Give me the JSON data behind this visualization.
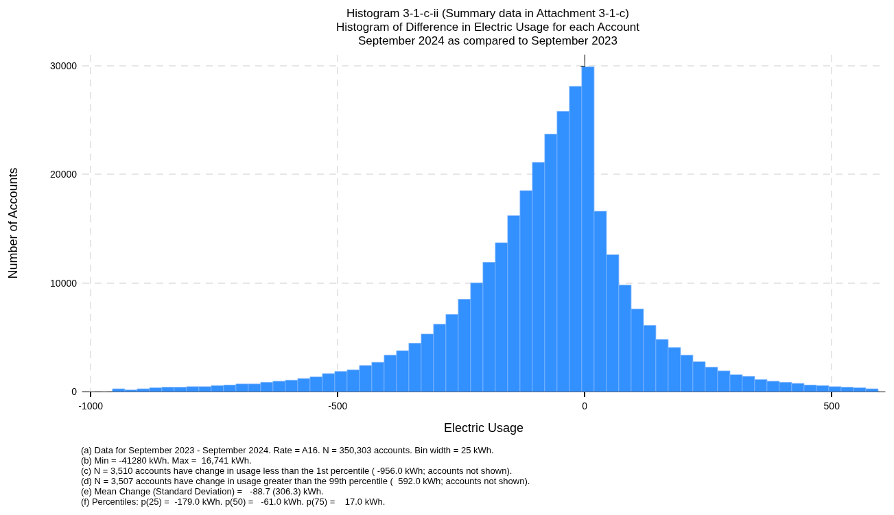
{
  "chart_data": {
    "type": "histogram",
    "title": "Histogram 3-1-c-ii (Summary data in Attachment 3-1-c)\nHistogram of Difference in Electric Usage for each Account\nSeptember 2024 as compared to September 2023",
    "xlabel": "Electric Usage",
    "ylabel": "Number of Accounts",
    "bins": [
      -956,
      -931,
      -906,
      -881,
      -856,
      -831,
      -806,
      -781,
      -756,
      -731,
      -706,
      -681,
      -656,
      -631,
      -606,
      -581,
      -556,
      -531,
      -506,
      -481,
      -456,
      -431,
      -406,
      -381,
      -356,
      -331,
      -306,
      -281,
      -256,
      -231,
      -206,
      -181,
      -156,
      -131,
      -106,
      -81,
      -56,
      -31,
      -6,
      19,
      44,
      69,
      94,
      119,
      144,
      169,
      194,
      219,
      244,
      269,
      294,
      319,
      344,
      369,
      394,
      419,
      444,
      469,
      494,
      519,
      544,
      569,
      594
    ],
    "values": [
      250,
      150,
      250,
      350,
      400,
      400,
      450,
      450,
      550,
      600,
      700,
      700,
      850,
      950,
      1050,
      1200,
      1350,
      1650,
      1850,
      2000,
      2400,
      2700,
      3350,
      3750,
      4450,
      5300,
      6200,
      7100,
      8500,
      10000,
      11900,
      13700,
      16200,
      18500,
      21100,
      23700,
      25800,
      28100,
      29900,
      16600,
      12600,
      9800,
      7600,
      6100,
      4800,
      4050,
      3350,
      2750,
      2250,
      1900,
      1550,
      1400,
      1100,
      950,
      850,
      750,
      600,
      550,
      450,
      400,
      350,
      250
    ],
    "color": "#3390ff",
    "xlim": [
      -1017,
      608
    ],
    "xticks": [
      -1000,
      -500,
      0,
      500
    ],
    "ylim": [
      0,
      31000
    ],
    "yticks": [
      0,
      10000,
      20000,
      30000
    ],
    "grid": true,
    "annotations": [
      "(a) Data for September 2023 - September 2024. Rate = A16. N = 350,303 accounts. Bin width = 25 kWh.",
      "(b) Min = -41280 kWh. Max =  16,741 kWh.",
      "(c) N = 3,510 accounts have change in usage less than the 1st percentile ( -956.0 kWh; accounts not shown).",
      "(d) N = 3,507 accounts have change in usage greater than the 99th percentile (  592.0 kWh; accounts not shown).",
      "(e) Mean Change (Standard Deviation) =   -88.7 (306.3) kWh.",
      "(f) Percentiles: p(25) =  -179.0 kWh. p(50) =   -61.0 kWh. p(75) =    17.0 kWh."
    ]
  }
}
